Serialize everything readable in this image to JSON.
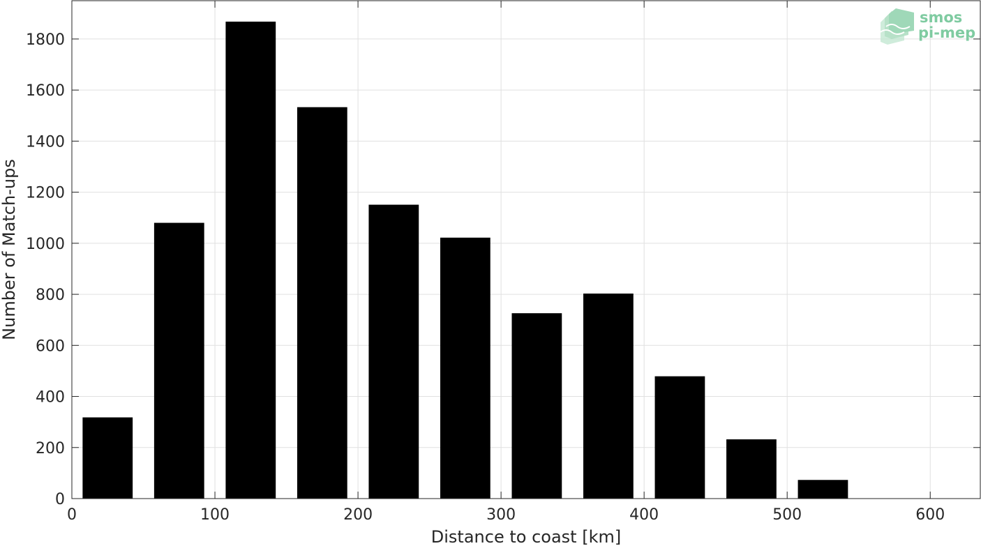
{
  "chart_data": {
    "type": "bar",
    "bin_edges": [
      0,
      50,
      100,
      150,
      200,
      250,
      300,
      350,
      400,
      450,
      500,
      550
    ],
    "x": [
      25,
      75,
      125,
      175,
      225,
      275,
      325,
      375,
      425,
      475,
      525
    ],
    "values": [
      318,
      1080,
      1868,
      1533,
      1151,
      1022,
      726,
      803,
      479,
      232,
      73
    ],
    "bar_width": 35,
    "xlabel": "Distance to coast [km]",
    "ylabel": "Number of Match-ups",
    "xlim": [
      0,
      635
    ],
    "ylim": [
      0,
      1950
    ],
    "xticks": [
      0,
      100,
      200,
      300,
      400,
      500,
      600
    ],
    "yticks": [
      0,
      200,
      400,
      600,
      800,
      1000,
      1200,
      1400,
      1600,
      1800
    ],
    "grid": true,
    "bar_color": "#000000",
    "grid_color": "#e0e0e0"
  },
  "logo": {
    "line1": "smos",
    "line2": "pi-mep",
    "color": "#7fcba1"
  }
}
